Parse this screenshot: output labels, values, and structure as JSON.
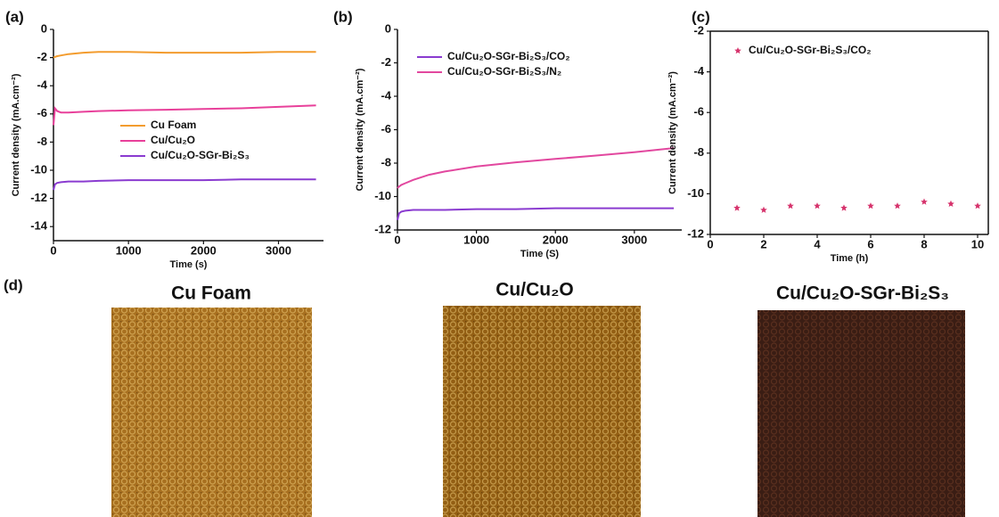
{
  "chart_data": [
    {
      "type": "line",
      "panel_label": "(a)",
      "x_label": "Time (s)",
      "y_label": "Current density (mA.cm⁻²)",
      "xlim": [
        0,
        3600
      ],
      "xticks": [
        0,
        1000,
        2000,
        3000
      ],
      "ylim": [
        -15,
        0
      ],
      "yticks": [
        0,
        -2,
        -4,
        -6,
        -8,
        -10,
        -12,
        -14
      ],
      "x": [
        0,
        20,
        50,
        100,
        200,
        400,
        600,
        1000,
        1500,
        2000,
        2500,
        3000,
        3500
      ],
      "series": [
        {
          "name": "Cu Foam",
          "color": "#f39c2e",
          "values": [
            -2.0,
            -1.95,
            -1.9,
            -1.85,
            -1.75,
            -1.65,
            -1.6,
            -1.6,
            -1.65,
            -1.65,
            -1.65,
            -1.6,
            -1.6
          ]
        },
        {
          "name": "Cu/Cu₂O",
          "color": "#e8409a",
          "values": [
            -6.8,
            -5.6,
            -5.8,
            -5.9,
            -5.9,
            -5.85,
            -5.8,
            -5.75,
            -5.7,
            -5.65,
            -5.6,
            -5.5,
            -5.4
          ]
        },
        {
          "name": "Cu/Cu₂O-SGr-Bi₂S₃",
          "color": "#8a3bd0",
          "values": [
            -11.4,
            -11.0,
            -10.9,
            -10.85,
            -10.8,
            -10.8,
            -10.75,
            -10.7,
            -10.7,
            -10.7,
            -10.65,
            -10.65,
            -10.65
          ]
        }
      ]
    },
    {
      "type": "line",
      "panel_label": "(b)",
      "x_label": "Time (S)",
      "y_label": "Current density (mA.cm⁻²)",
      "xlim": [
        0,
        3600
      ],
      "xticks": [
        0,
        1000,
        2000,
        3000
      ],
      "ylim": [
        -12,
        0
      ],
      "yticks": [
        0,
        -2,
        -4,
        -6,
        -8,
        -10,
        -12
      ],
      "x": [
        0,
        20,
        50,
        100,
        200,
        400,
        600,
        1000,
        1500,
        2000,
        2500,
        3000,
        3500
      ],
      "series": [
        {
          "name": "Cu/Cu₂O-SGr-Bi₂S₃/CO₂",
          "color": "#8a3bd0",
          "values": [
            -11.4,
            -11.0,
            -10.9,
            -10.85,
            -10.8,
            -10.8,
            -10.8,
            -10.75,
            -10.75,
            -10.7,
            -10.7,
            -10.7,
            -10.7
          ]
        },
        {
          "name": "Cu/Cu₂O-SGr-Bi₂S₃/N₂",
          "color": "#e2489f",
          "values": [
            -9.5,
            -9.4,
            -9.3,
            -9.2,
            -9.0,
            -8.7,
            -8.5,
            -8.2,
            -7.95,
            -7.75,
            -7.55,
            -7.35,
            -7.1
          ]
        }
      ]
    },
    {
      "type": "scatter",
      "panel_label": "(c)",
      "x_label": "Time (h)",
      "y_label": "Current density (mA.cm⁻²)",
      "xlim": [
        0,
        10.4
      ],
      "xticks": [
        0,
        2,
        4,
        6,
        8,
        10
      ],
      "ylim": [
        -12,
        -2
      ],
      "yticks": [
        -2,
        -4,
        -6,
        -8,
        -10,
        -12
      ],
      "x": [
        1,
        2,
        3,
        4,
        5,
        6,
        7,
        8,
        9,
        10
      ],
      "series": [
        {
          "name": "Cu/Cu₂O-SGr-Bi₂S₃/CO₂",
          "color": "#d6336c",
          "values": [
            -10.7,
            -10.8,
            -10.6,
            -10.6,
            -10.7,
            -10.6,
            -10.6,
            -10.4,
            -10.5,
            -10.6
          ]
        }
      ]
    }
  ],
  "photos_panel": {
    "label": "(d)",
    "titles": [
      "Cu Foam",
      "Cu/Cu₂O",
      "Cu/Cu₂O-SGr-Bi₂S₃"
    ]
  }
}
